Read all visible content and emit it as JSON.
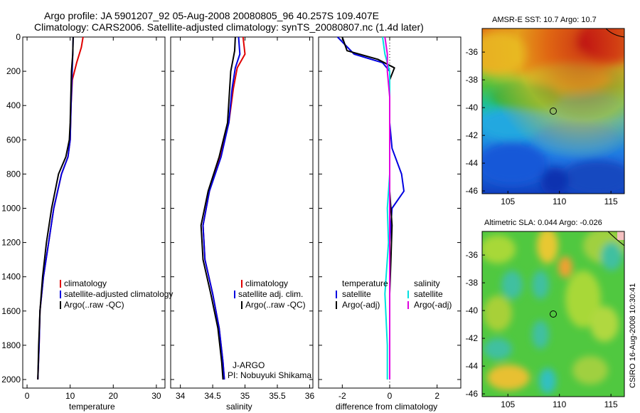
{
  "header": {
    "line1": "Argo profile: JA 5901207_92 05-Aug-2008 20080805_96 40.257S 109.407E",
    "line2": "Climatology: CARS2006. Satellite-adjusted climatology: synTS_20080807.nc (1.4d later)"
  },
  "credit": "CSIRO 16-Aug-2008 10:30:41",
  "colors": {
    "red": "#e00000",
    "blue": "#0000e0",
    "black": "#000000",
    "cyan": "#00e0e0",
    "magenta": "#e000e0"
  },
  "chart_data": [
    {
      "type": "line",
      "panel": "temperature",
      "xlabel": "temperature",
      "ylabel": "",
      "xlim": [
        -1,
        32
      ],
      "ylim": [
        2050,
        0
      ],
      "xticks": [
        "0",
        "10",
        "20",
        "30"
      ],
      "xtick_values": [
        0,
        10,
        20,
        30
      ],
      "yticks": [
        "0",
        "200",
        "400",
        "600",
        "800",
        "1000",
        "1200",
        "1400",
        "1600",
        "1800",
        "2000"
      ],
      "ytick_values": [
        0,
        200,
        400,
        600,
        800,
        1000,
        1200,
        1400,
        1600,
        1800,
        2000
      ],
      "legend": [
        "climatology",
        "satellite-adjusted climatology",
        "Argo(..raw -QC)"
      ],
      "series": [
        {
          "name": "climatology",
          "color": "#e00000",
          "points": [
            [
              13.0,
              0
            ],
            [
              12.6,
              60
            ],
            [
              11.5,
              150
            ],
            [
              10.5,
              250
            ],
            [
              10.2,
              400
            ],
            [
              10.0,
              600
            ],
            [
              9.5,
              700
            ],
            [
              8.0,
              800
            ],
            [
              6.2,
              1000
            ],
            [
              5.0,
              1200
            ],
            [
              3.8,
              1400
            ],
            [
              3.0,
              1600
            ],
            [
              2.8,
              1800
            ],
            [
              2.5,
              2000
            ]
          ]
        },
        {
          "name": "satellite-adjusted climatology",
          "color": "#0000e0",
          "points": [
            [
              10.7,
              0
            ],
            [
              10.6,
              100
            ],
            [
              10.4,
              250
            ],
            [
              10.2,
              400
            ],
            [
              10.0,
              600
            ],
            [
              9.5,
              700
            ],
            [
              8.0,
              800
            ],
            [
              6.2,
              1000
            ],
            [
              5.0,
              1200
            ],
            [
              3.8,
              1400
            ],
            [
              3.0,
              1600
            ],
            [
              2.8,
              1800
            ],
            [
              2.5,
              2000
            ]
          ]
        },
        {
          "name": "Argo(..raw -QC)",
          "color": "#000000",
          "points": [
            [
              10.7,
              0
            ],
            [
              10.6,
              100
            ],
            [
              10.3,
              200
            ],
            [
              10.2,
              300
            ],
            [
              10.0,
              500
            ],
            [
              9.8,
              600
            ],
            [
              9.0,
              700
            ],
            [
              7.3,
              800
            ],
            [
              5.7,
              1000
            ],
            [
              4.5,
              1200
            ],
            [
              3.6,
              1400
            ],
            [
              3.0,
              1600
            ],
            [
              2.7,
              1800
            ],
            [
              2.5,
              2000
            ]
          ]
        }
      ]
    },
    {
      "type": "line",
      "panel": "salinity",
      "xlabel": "salinity",
      "xlim": [
        33.85,
        36.05
      ],
      "ylim": [
        2050,
        0
      ],
      "xticks": [
        "34",
        "34.5",
        "35",
        "35.5",
        "36"
      ],
      "xtick_values": [
        34,
        34.5,
        35,
        35.5,
        36
      ],
      "legend": [
        "climatology",
        "satellite adj. clim.",
        "Argo(..raw -QC)"
      ],
      "annotation": [
        "J-ARGO",
        "PI: Nobuyuki Shikama"
      ],
      "series": [
        {
          "name": "climatology",
          "color": "#e00000",
          "points": [
            [
              34.97,
              0
            ],
            [
              35.0,
              100
            ],
            [
              34.88,
              180
            ],
            [
              34.82,
              300
            ],
            [
              34.75,
              500
            ],
            [
              34.62,
              700
            ],
            [
              34.45,
              900
            ],
            [
              34.35,
              1100
            ],
            [
              34.38,
              1300
            ],
            [
              34.5,
              1500
            ],
            [
              34.6,
              1700
            ],
            [
              34.66,
              1900
            ],
            [
              34.68,
              2000
            ]
          ]
        },
        {
          "name": "satellite adj. clim.",
          "color": "#0000e0",
          "points": [
            [
              34.9,
              0
            ],
            [
              34.92,
              100
            ],
            [
              34.85,
              180
            ],
            [
              34.8,
              300
            ],
            [
              34.75,
              500
            ],
            [
              34.63,
              700
            ],
            [
              34.45,
              900
            ],
            [
              34.35,
              1100
            ],
            [
              34.38,
              1300
            ],
            [
              34.5,
              1500
            ],
            [
              34.6,
              1700
            ],
            [
              34.66,
              1900
            ],
            [
              34.68,
              2000
            ]
          ]
        },
        {
          "name": "Argo(..raw -QC)",
          "color": "#000000",
          "points": [
            [
              34.85,
              0
            ],
            [
              34.84,
              80
            ],
            [
              34.82,
              120
            ],
            [
              34.78,
              200
            ],
            [
              34.73,
              500
            ],
            [
              34.6,
              700
            ],
            [
              34.43,
              900
            ],
            [
              34.32,
              1100
            ],
            [
              34.35,
              1300
            ],
            [
              34.47,
              1500
            ],
            [
              34.58,
              1700
            ],
            [
              34.64,
              1900
            ],
            [
              34.66,
              2000
            ]
          ]
        }
      ]
    },
    {
      "type": "line",
      "panel": "difference",
      "xlabel": "difference from climatology",
      "xlim": [
        -3,
        3
      ],
      "ylim": [
        2050,
        0
      ],
      "xticks": [
        "-2",
        "0",
        "2"
      ],
      "xtick_values": [
        -2,
        0,
        2
      ],
      "legend_left": [
        "temperature",
        "satellite",
        "Argo(-adj)"
      ],
      "legend_right": [
        "salinity",
        "satellite",
        "Argo(-adj)"
      ],
      "series": [
        {
          "name": "temperature satellite",
          "color": "#0000e0",
          "points": [
            [
              -2.2,
              0
            ],
            [
              -1.5,
              100
            ],
            [
              -0.3,
              150
            ],
            [
              0.0,
              200
            ],
            [
              0.0,
              500
            ],
            [
              0.1,
              650
            ],
            [
              0.5,
              800
            ],
            [
              0.6,
              900
            ],
            [
              0.1,
              1000
            ],
            [
              0.0,
              1200
            ],
            [
              0.0,
              1400
            ],
            [
              0.0,
              2000
            ]
          ]
        },
        {
          "name": "temperature Argo(-adj)",
          "color": "#000000",
          "points": [
            [
              -2.0,
              0
            ],
            [
              -1.8,
              80
            ],
            [
              -0.5,
              130
            ],
            [
              0.2,
              180
            ],
            [
              0.0,
              250
            ],
            [
              0.0,
              900
            ],
            [
              0.1,
              1100
            ],
            [
              0.05,
              1300
            ],
            [
              0.0,
              1500
            ],
            [
              0.0,
              2000
            ]
          ]
        },
        {
          "name": "salinity satellite",
          "color": "#00e0e0",
          "points": [
            [
              -0.3,
              0
            ],
            [
              -0.2,
              100
            ],
            [
              0.0,
              200
            ],
            [
              0.0,
              800
            ],
            [
              -0.1,
              1000
            ],
            [
              -0.05,
              1200
            ],
            [
              -0.2,
              1500
            ],
            [
              -0.1,
              1800
            ],
            [
              -0.1,
              2000
            ]
          ]
        },
        {
          "name": "salinity Argo(-adj)",
          "color": "#e000e0",
          "points": [
            [
              -0.2,
              0
            ],
            [
              -0.1,
              100
            ],
            [
              -0.1,
              200
            ],
            [
              0.0,
              350
            ],
            [
              0.0,
              2000
            ]
          ]
        }
      ]
    },
    {
      "type": "heatmap",
      "panel": "sst-map",
      "title": "AMSR-E SST: 10.7 Argo: 10.7",
      "xticks": [
        "105",
        "110",
        "115"
      ],
      "xtick_values": [
        105,
        110,
        115
      ],
      "yticks": [
        "-36",
        "-38",
        "-40",
        "-42",
        "-44",
        "-46"
      ],
      "ytick_values": [
        -36,
        -38,
        -40,
        -42,
        -44,
        -46
      ],
      "xlim": [
        102.5,
        116.3
      ],
      "ylim": [
        -46.2,
        -34.3
      ],
      "marker": {
        "lon": 109.4,
        "lat": -40.25
      }
    },
    {
      "type": "heatmap",
      "panel": "sla-map",
      "title": "Altimetric SLA: 0.044 Argo: -0.026",
      "xticks": [
        "105",
        "110",
        "115"
      ],
      "xtick_values": [
        105,
        110,
        115
      ],
      "yticks": [
        "-36",
        "-38",
        "-40",
        "-42",
        "-44",
        "-46"
      ],
      "ytick_values": [
        -36,
        -38,
        -40,
        -42,
        -44,
        -46
      ],
      "xlim": [
        102.5,
        116.3
      ],
      "ylim": [
        -46.2,
        -34.3
      ],
      "marker": {
        "lon": 109.4,
        "lat": -40.25
      }
    }
  ]
}
